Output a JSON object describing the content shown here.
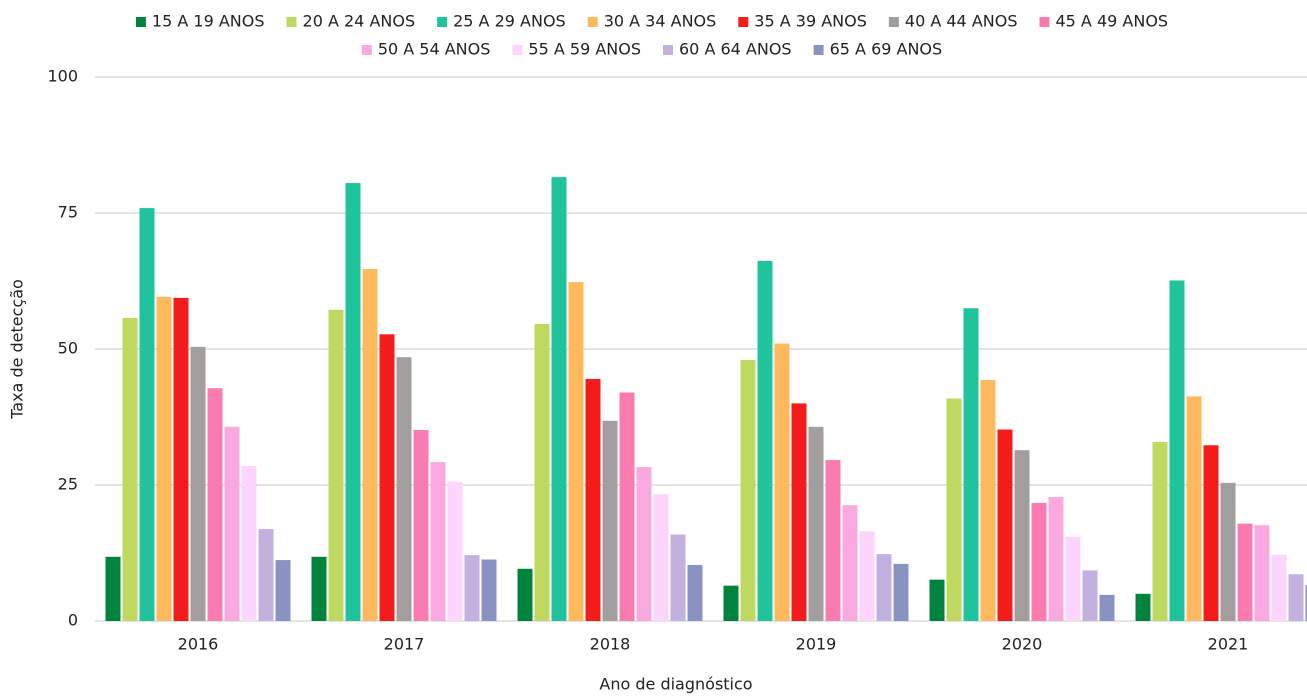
{
  "chart_data": {
    "type": "bar",
    "x_label": "Ano de diagnóstico",
    "y_label": "Taxa de detecção",
    "categories": [
      "2016",
      "2017",
      "2018",
      "2019",
      "2020",
      "2021"
    ],
    "series": [
      {
        "name": "15 A 19 ANOS",
        "color": "#00843d",
        "values": [
          11.8,
          11.8,
          9.6,
          6.5,
          7.6,
          5.0
        ]
      },
      {
        "name": "20 A 24 ANOS",
        "color": "#bfd85f",
        "values": [
          55.7,
          57.2,
          54.6,
          48.0,
          40.9,
          32.9
        ]
      },
      {
        "name": "25 A 29 ANOS",
        "color": "#1fc39c",
        "values": [
          75.9,
          80.5,
          81.6,
          66.2,
          57.5,
          62.6
        ]
      },
      {
        "name": "30 A 34 ANOS",
        "color": "#fdb95c",
        "values": [
          59.6,
          64.7,
          62.3,
          51.0,
          44.3,
          41.3
        ]
      },
      {
        "name": "35 A 39 ANOS",
        "color": "#f41b1b",
        "values": [
          59.4,
          52.7,
          44.5,
          40.0,
          35.2,
          32.3
        ]
      },
      {
        "name": "40 A 44 ANOS",
        "color": "#a39e9e",
        "values": [
          50.4,
          48.5,
          36.8,
          35.7,
          31.4,
          25.4
        ]
      },
      {
        "name": "45 A 49 ANOS",
        "color": "#fb7bb0",
        "values": [
          42.8,
          35.1,
          42.0,
          29.6,
          21.7,
          17.9
        ]
      },
      {
        "name": "50 A 54 ANOS",
        "color": "#f9a8e0",
        "values": [
          35.7,
          29.2,
          28.3,
          21.3,
          22.8,
          17.6
        ]
      },
      {
        "name": "55 A 59 ANOS",
        "color": "#fdd4fb",
        "values": [
          28.5,
          25.6,
          23.3,
          16.5,
          15.5,
          12.2
        ]
      },
      {
        "name": "60 A 64 ANOS",
        "color": "#c2b0de",
        "values": [
          16.9,
          12.1,
          15.9,
          12.3,
          9.3,
          8.6
        ]
      },
      {
        "name": "65 A 69 ANOS",
        "color": "#8893c3",
        "values": [
          11.2,
          11.3,
          10.3,
          10.5,
          4.8,
          6.6
        ]
      }
    ],
    "ylim": [
      0,
      100
    ],
    "yticks": [
      0,
      25,
      50,
      75,
      100
    ],
    "grid": true,
    "legend": "top"
  }
}
